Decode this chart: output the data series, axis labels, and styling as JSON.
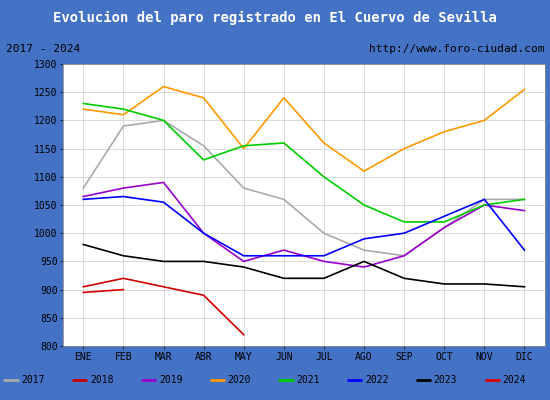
{
  "title": "Evolucion del paro registrado en El Cuervo de Sevilla",
  "subtitle_left": "2017 - 2024",
  "subtitle_right": "http://www.foro-ciudad.com",
  "title_bg": "#4472c4",
  "title_color": "#ffffff",
  "months": [
    "ENE",
    "FEB",
    "MAR",
    "ABR",
    "MAY",
    "JUN",
    "JUL",
    "AGO",
    "SEP",
    "OCT",
    "NOV",
    "DIC"
  ],
  "ylim": [
    800,
    1300
  ],
  "yticks": [
    800,
    850,
    900,
    950,
    1000,
    1050,
    1100,
    1150,
    1200,
    1250,
    1300
  ],
  "series": {
    "2017": {
      "color": "#aaaaaa",
      "values": [
        1080,
        1190,
        1200,
        1155,
        1080,
        1060,
        1000,
        970,
        960,
        1010,
        1060,
        1060
      ]
    },
    "2018": {
      "color": "#cc0000",
      "values": [
        905,
        920,
        905,
        890,
        820,
        null,
        null,
        null,
        null,
        null,
        null,
        null
      ]
    },
    "2019": {
      "color": "#9900cc",
      "values": [
        1065,
        1080,
        1090,
        1000,
        950,
        970,
        950,
        940,
        960,
        1010,
        1050,
        1040
      ]
    },
    "2020": {
      "color": "#ff9900",
      "values": [
        1220,
        1210,
        1260,
        1240,
        1150,
        1240,
        1160,
        1110,
        1150,
        1180,
        1200,
        1255
      ]
    },
    "2021": {
      "color": "#00cc00",
      "values": [
        1230,
        1220,
        1200,
        1130,
        1155,
        1160,
        1100,
        1050,
        1020,
        1020,
        1050,
        1060
      ]
    },
    "2022": {
      "color": "#0000ff",
      "values": [
        1060,
        1065,
        1055,
        1000,
        960,
        960,
        960,
        990,
        1000,
        1030,
        1060,
        970
      ]
    },
    "2023": {
      "color": "#000000",
      "values": [
        980,
        960,
        950,
        950,
        940,
        920,
        920,
        950,
        920,
        910,
        910,
        905
      ]
    },
    "2024": {
      "color": "#dd0000",
      "values": [
        895,
        900,
        null,
        null,
        null,
        null,
        null,
        null,
        null,
        null,
        null,
        null
      ]
    }
  }
}
